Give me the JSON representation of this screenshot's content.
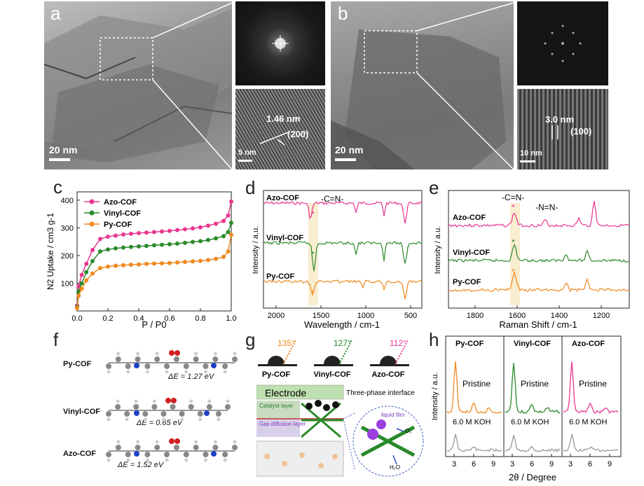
{
  "panels": {
    "a": {
      "label": "a",
      "scale_main": "20 nm",
      "scale_inset": "5 nm",
      "spacing": "1.46 nm",
      "plane": "(200)"
    },
    "b": {
      "label": "b",
      "scale_main": "20 nm",
      "scale_inset": "10 nm",
      "spacing": "3.0 nm",
      "plane": "(100)"
    },
    "c": {
      "label": "c"
    },
    "d": {
      "label": "d"
    },
    "e": {
      "label": "e"
    },
    "f": {
      "label": "f"
    },
    "g": {
      "label": "g"
    },
    "h": {
      "label": "h"
    }
  },
  "panel_f": {
    "rows": [
      {
        "name": "Py-COF",
        "energy": "ΔE = 1.27 eV"
      },
      {
        "name": "Vinyl-COF",
        "energy": "ΔE = 0.65 eV"
      },
      {
        "name": "Azo-COF",
        "energy": "ΔE = 1.52 eV"
      }
    ]
  },
  "panel_g": {
    "angles": [
      "135°",
      "127°",
      "112°"
    ],
    "names": [
      "Py-COF",
      "Vinyl-COF",
      "Azo-COF"
    ],
    "electrode": "Electrode",
    "interface": "Three-phase interface",
    "catalyst": "Catalyst layer",
    "gdl": "Gas diffusion layer",
    "liquid": "liquid film",
    "o2": "O₂",
    "h2o": "H₂O"
  },
  "colors": {
    "azo": "#e8368f",
    "vinyl": "#2a8a2a",
    "py": "#f0891e",
    "gray": "#9a9a9a"
  },
  "chart_data": [
    {
      "type": "scatter",
      "panel": "c",
      "xlabel": "P / P0",
      "ylabel": "N2 Uptake / cm3 g-1",
      "xlim": [
        0,
        1.0
      ],
      "ylim": [
        0,
        430
      ],
      "xticks": [
        "0.0",
        "0.2",
        "0.4",
        "0.6",
        "0.8",
        "1.0"
      ],
      "yticks": [
        "100",
        "200",
        "300",
        "400"
      ],
      "legend": "top-left",
      "x": [
        0.0,
        0.01,
        0.03,
        0.06,
        0.1,
        0.15,
        0.2,
        0.25,
        0.3,
        0.35,
        0.4,
        0.45,
        0.5,
        0.55,
        0.6,
        0.65,
        0.7,
        0.75,
        0.8,
        0.85,
        0.9,
        0.95,
        0.98,
        1.0
      ],
      "series": [
        {
          "name": "Azo-COF",
          "values": [
            20,
            90,
            130,
            170,
            220,
            260,
            268,
            272,
            276,
            279,
            281,
            283,
            285,
            287,
            289,
            292,
            295,
            298,
            302,
            308,
            315,
            325,
            345,
            395
          ]
        },
        {
          "name": "Vinyl-COF",
          "values": [
            15,
            70,
            100,
            140,
            180,
            215,
            222,
            226,
            229,
            231,
            233,
            235,
            237,
            239,
            241,
            243,
            246,
            249,
            252,
            256,
            262,
            270,
            285,
            318
          ]
        },
        {
          "name": "Py-COF",
          "values": [
            10,
            55,
            80,
            110,
            135,
            155,
            160,
            163,
            165,
            167,
            168,
            170,
            171,
            172,
            173,
            175,
            177,
            179,
            181,
            184,
            188,
            195,
            215,
            275
          ]
        }
      ]
    },
    {
      "type": "line",
      "panel": "d",
      "xlabel": "Wavelength / cm-1",
      "ylabel": "Intensity / a.u.",
      "xticks": [
        "2000",
        "1500",
        "1000",
        "500"
      ],
      "annotation": "-C=N-",
      "series": [
        {
          "name": "Azo-COF"
        },
        {
          "name": "Vinyl-COF"
        },
        {
          "name": "Py-COF"
        }
      ]
    },
    {
      "type": "line",
      "panel": "e",
      "xlabel": "Raman Shift / cm-1",
      "ylabel": "Intensity / a.u.",
      "xticks": [
        "1800",
        "1600",
        "1400",
        "1200"
      ],
      "annotations": [
        "-C=N-",
        "-N=N-"
      ],
      "series": [
        {
          "name": "Azo-COF"
        },
        {
          "name": "Vinyl-COF"
        },
        {
          "name": "Py-COF"
        }
      ]
    },
    {
      "type": "line",
      "panel": "h",
      "xlabel": "2θ / Degree",
      "ylabel": "Intensity / a.u.",
      "xticks": [
        "3",
        "6",
        "9"
      ],
      "subpanels": [
        "Py-COF",
        "Vinyl-COF",
        "Azo-COF"
      ],
      "labels": {
        "pristine": "Pristine",
        "koh": "6.0 M KOH"
      }
    }
  ]
}
